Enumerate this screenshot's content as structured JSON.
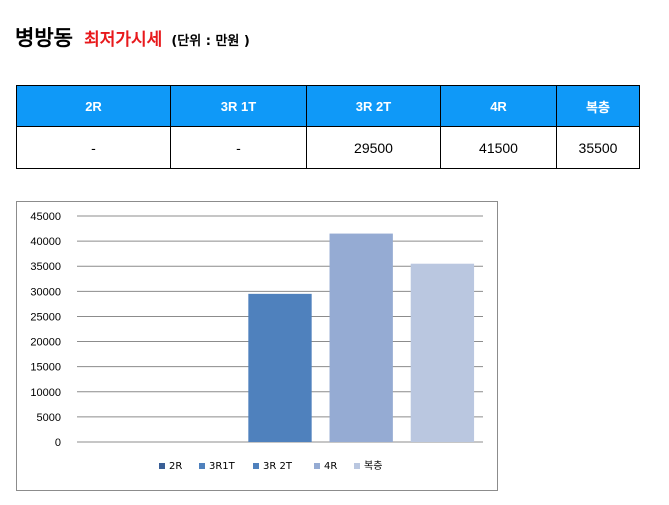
{
  "title": {
    "main": "병방동",
    "sub": "최저가시세",
    "unit": "(단위 : 만원 )"
  },
  "table": {
    "headers": [
      "2R",
      "3R 1T",
      "3R 2T",
      "4R",
      "복층"
    ],
    "values": [
      "-",
      "-",
      "29500",
      "41500",
      "35500"
    ]
  },
  "chart_data": {
    "type": "bar",
    "categories": [
      "2R",
      "3R1T",
      "3R 2T",
      "4R",
      "복층"
    ],
    "values": [
      null,
      null,
      29500,
      41500,
      35500
    ],
    "ylim": [
      0,
      45000
    ],
    "yticks": [
      0,
      5000,
      10000,
      15000,
      20000,
      25000,
      30000,
      35000,
      40000,
      45000
    ],
    "grid": true,
    "legend": "bottom",
    "colors": [
      "#3a5f96",
      "#4f81bd",
      "#4f81bd",
      "#95abd3",
      "#bac7e0"
    ]
  },
  "colors": {
    "header_bg": "#0f99f8",
    "title_accent": "#e8191c"
  }
}
